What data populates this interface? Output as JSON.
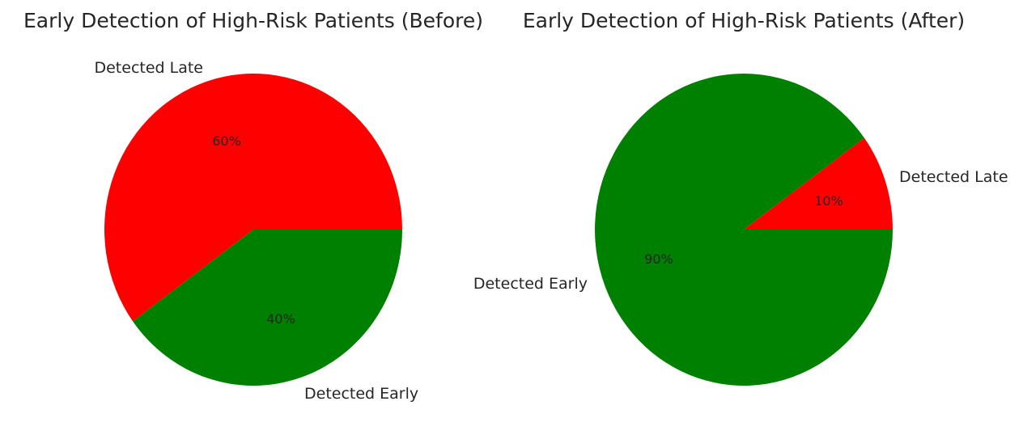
{
  "chart_data": [
    {
      "type": "pie",
      "title": "Early Detection of High-Risk Patients (Before)",
      "labels": [
        "Detected Late",
        "Detected Early"
      ],
      "values": [
        60,
        40
      ],
      "percent_labels": [
        "60%",
        "40%"
      ],
      "colors": [
        "#ff0000",
        "#008000"
      ],
      "start_angle_deg": 0
    },
    {
      "type": "pie",
      "title": "Early Detection of High-Risk Patients (After)",
      "labels": [
        "Detected Late",
        "Detected Early"
      ],
      "values": [
        10,
        90
      ],
      "percent_labels": [
        "10%",
        "90%"
      ],
      "colors": [
        "#ff0000",
        "#008000"
      ],
      "start_angle_deg": 0
    }
  ]
}
